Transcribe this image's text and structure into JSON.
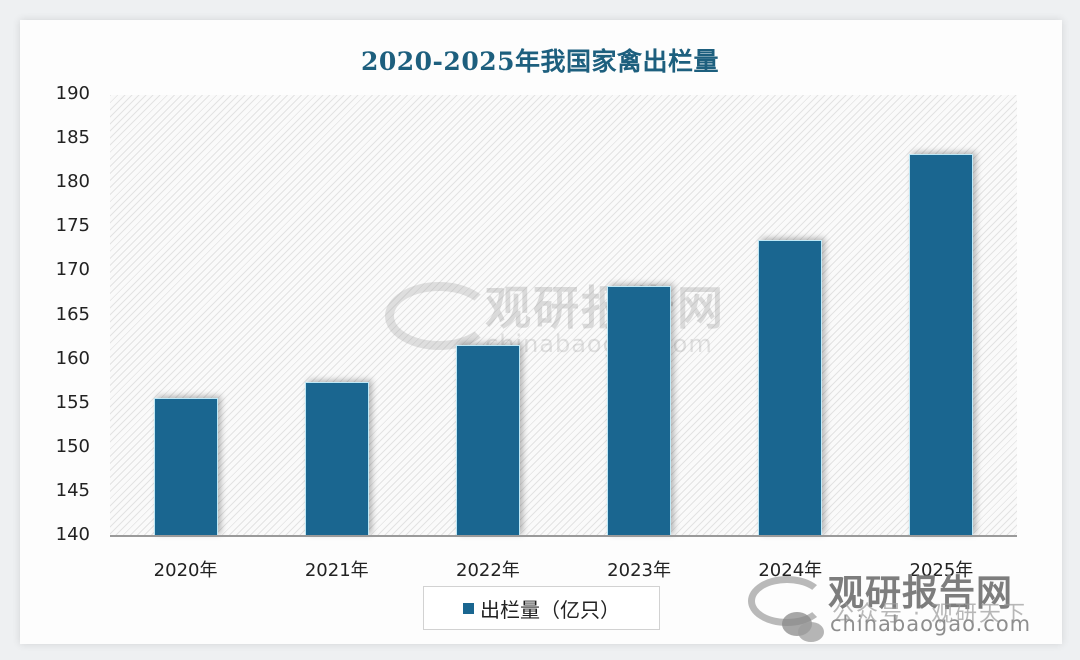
{
  "chart_data": {
    "type": "bar",
    "title": "2020-2025年我国家禽出栏量",
    "categories": [
      "2020年",
      "2021年",
      "2022年",
      "2023年",
      "2024年",
      "2025年"
    ],
    "series": [
      {
        "name": "出栏量（亿只）",
        "values": [
          155.7,
          157.5,
          161.6,
          168.4,
          173.6,
          183.3
        ],
        "color": "#1a6690"
      }
    ],
    "xlabel": "",
    "ylabel": "",
    "ylim": [
      140,
      190
    ],
    "yticks": [
      190,
      185,
      180,
      175,
      170,
      165,
      160,
      155,
      150,
      145,
      140
    ],
    "grid": false,
    "legend_position": "bottom"
  },
  "title": "2020-2025年我国家禽出栏量",
  "yaxis": {
    "ticks": [
      "190",
      "185",
      "180",
      "175",
      "170",
      "165",
      "160",
      "155",
      "150",
      "145",
      "140"
    ]
  },
  "xaxis": {
    "labels": [
      "2020年",
      "2021年",
      "2022年",
      "2023年",
      "2024年",
      "2025年"
    ]
  },
  "legend": {
    "label": "出栏量（亿只）"
  },
  "watermark": {
    "brand": "观研报告网",
    "url": "chinabaogao.com",
    "wechat": "公众号 · 观研天下"
  }
}
